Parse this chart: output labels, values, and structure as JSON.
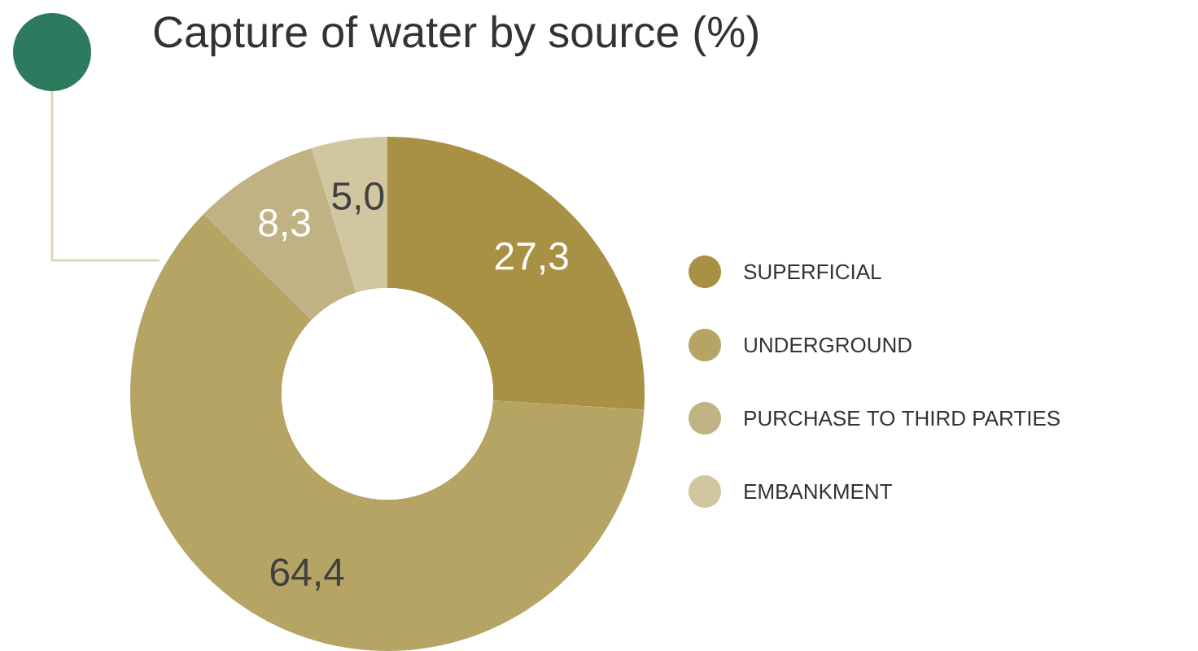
{
  "chart_data": {
    "type": "donut",
    "title": "Capture of water by source (%)",
    "categories": [
      "SUPERFICIAL",
      "UNDERGROUND",
      "PURCHASE TO THIRD PARTIES",
      "EMBANKMENT"
    ],
    "values": [
      27.3,
      64.4,
      8.3,
      5.0
    ],
    "value_labels": [
      "27,3",
      "64,4",
      "8,3",
      "5,0"
    ],
    "colors": [
      "#a89145",
      "#b6a465",
      "#c1b283",
      "#d1c6a0"
    ],
    "legend": "right"
  }
}
